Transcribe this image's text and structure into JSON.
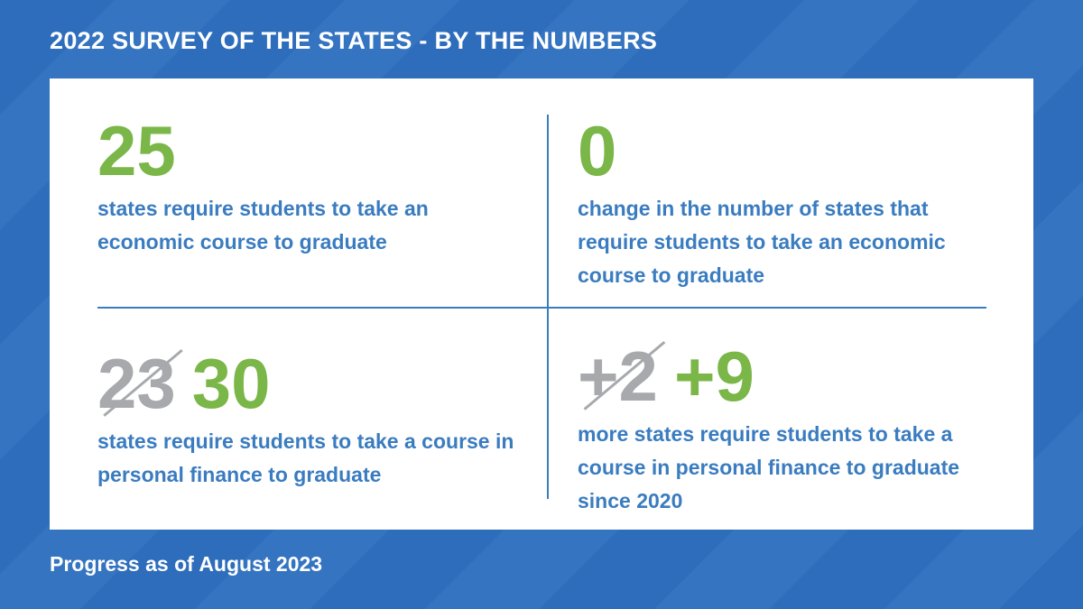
{
  "title": "2022 SURVEY OF THE STATES - BY THE NUMBERS",
  "footer": "Progress as of August 2023",
  "colors": {
    "background": "#2e6dbb",
    "accent_green": "#7ab648",
    "text_blue": "#3a7cc0",
    "struck_gray": "#a7a9ac"
  },
  "stats": [
    {
      "value": "25",
      "text": "states require students to take an economic course to graduate"
    },
    {
      "value": "0",
      "text": "change in the number of states that require students to take an economic course to graduate"
    },
    {
      "old_value": "23",
      "value": "30",
      "text": "states require students to take a course in personal finance to graduate"
    },
    {
      "old_value": "+2",
      "value": "+9",
      "text": "more states require students to take a course in personal finance to graduate since 2020"
    }
  ]
}
